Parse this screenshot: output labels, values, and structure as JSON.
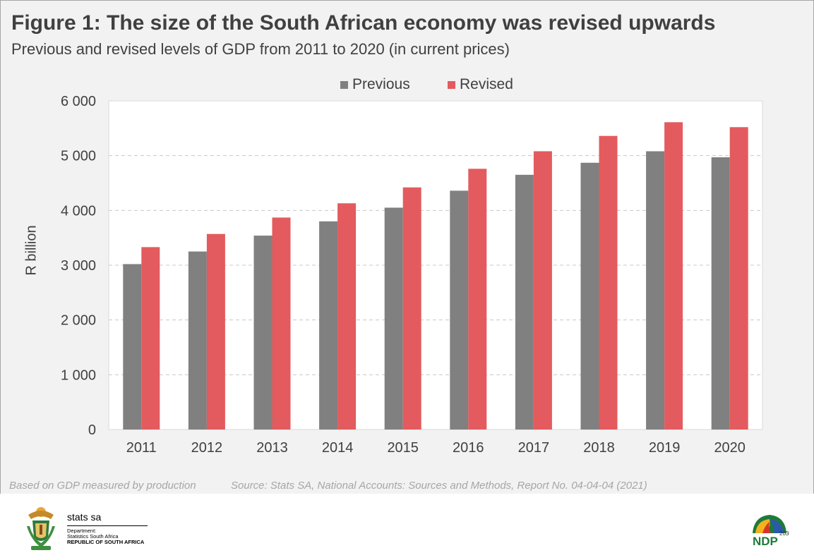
{
  "header": {
    "title": "Figure 1: The size of the South African economy was revised upwards",
    "subtitle": "Previous and revised levels of GDP from 2011 to 2020 (in current prices)"
  },
  "chart_data": {
    "type": "bar",
    "categories": [
      "2011",
      "2012",
      "2013",
      "2014",
      "2015",
      "2016",
      "2017",
      "2018",
      "2019",
      "2020"
    ],
    "series": [
      {
        "name": "Previous",
        "color": "#808080",
        "values": [
          3020,
          3250,
          3540,
          3800,
          4050,
          4360,
          4650,
          4870,
          5080,
          4970
        ]
      },
      {
        "name": "Revised",
        "color": "#e35b5e",
        "values": [
          3330,
          3570,
          3870,
          4130,
          4420,
          4760,
          5080,
          5360,
          5610,
          5520
        ]
      }
    ],
    "ylabel": "R billion",
    "ylim": [
      0,
      6000
    ],
    "yticks": [
      "0",
      "1 000",
      "2 000",
      "3 000",
      "4 000",
      "5 000",
      "6 000"
    ],
    "yticks_values": [
      0,
      1000,
      2000,
      3000,
      4000,
      5000,
      6000
    ],
    "grid": "horizontal-dashed",
    "legend": "top-center"
  },
  "notes": {
    "left": "Based on GDP measured by production",
    "right": "Source: Stats SA, National Accounts: Sources and Methods, Report No. 04-04-04 (2021)"
  },
  "footer": {
    "brand": "stats sa",
    "dept_line1": "Department:",
    "dept_line2": "Statistics South Africa",
    "dept_line3": "REPUBLIC OF SOUTH AFRICA",
    "ndp_text": "NDP",
    "ndp_year": "2030",
    "coat_of_arms_icon": "coat-of-arms-icon",
    "ndp_logo_icon": "ndp-2030-logo-icon"
  }
}
